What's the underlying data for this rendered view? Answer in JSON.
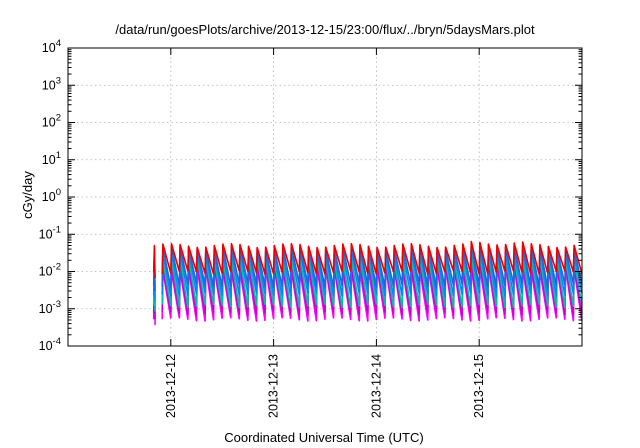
{
  "chart_data": {
    "type": "line",
    "title": "/data/run/goesPlots/archive/2013-12-15/23:00/flux/../bryn/5daysMars.plot",
    "xlabel": "Coordinated Universal Time (UTC)",
    "ylabel": "cGy/day",
    "x_scale": "time",
    "y_scale": "log",
    "xlim": [
      "2013-12-11T00:00",
      "2013-12-16T00:00"
    ],
    "ylim": [
      0.0001,
      10000
    ],
    "x_ticks": [
      "2013-12-12",
      "2013-12-13",
      "2013-12-14",
      "2013-12-15"
    ],
    "y_tick_bases": [
      "10",
      "10",
      "10",
      "10",
      "10",
      "10",
      "10",
      "10",
      "10"
    ],
    "y_tick_exponents": [
      "-4",
      "-3",
      "-2",
      "-1",
      "0",
      "1",
      "2",
      "3",
      "4"
    ],
    "y_tick_values": [
      0.0001,
      0.001,
      0.01,
      0.1,
      1,
      10,
      100,
      1000,
      10000
    ],
    "grid": true,
    "legend": "none",
    "sawtooth_period_hours": 2,
    "gap": [
      "2013-12-11T20:20",
      "2013-12-11T20:40"
    ],
    "series": [
      {
        "color": "#ff00ff",
        "peak": 0.0115,
        "trough": 0.00052
      },
      {
        "color": "#cc00cc",
        "peak": 0.0145,
        "trough": 0.00075
      },
      {
        "color": "#00c0a0",
        "peak": 0.022,
        "trough": 0.0012
      },
      {
        "color": "#0088ff",
        "peak": 0.033,
        "trough": 0.0024
      },
      {
        "color": "#2266dd",
        "peak": 0.045,
        "trough": 0.0042
      },
      {
        "color": "#ee0000",
        "peak": 0.05,
        "trough": 0.0095
      }
    ]
  }
}
